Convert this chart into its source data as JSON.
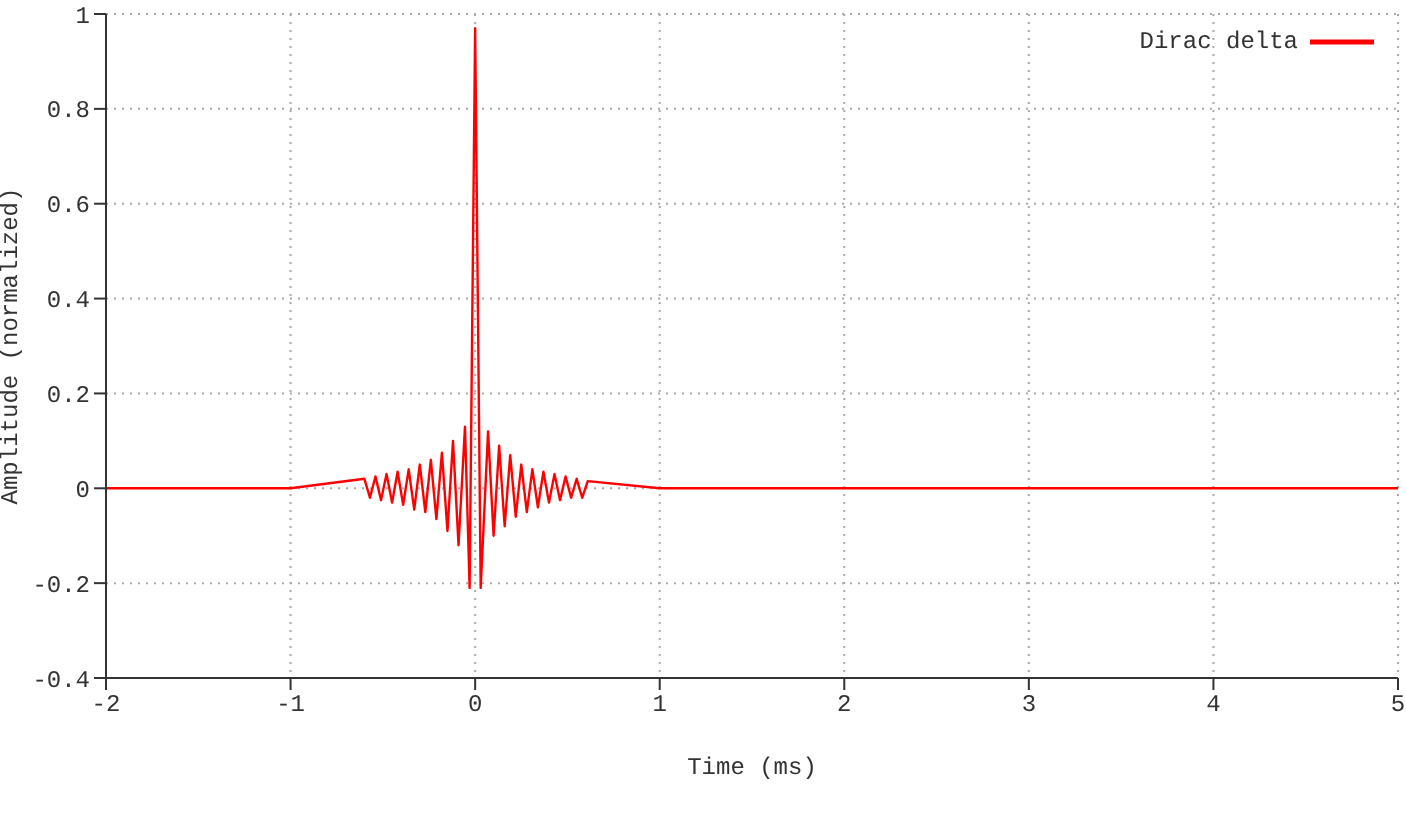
{
  "chart_data": {
    "type": "line",
    "xlabel": "Time (ms)",
    "ylabel": "Amplitude (normalized)",
    "xlim": [
      -2,
      5
    ],
    "xticks": [
      -2,
      -1,
      0,
      1,
      2,
      3,
      4,
      5
    ],
    "ylim": [
      -0.4,
      1
    ],
    "yticks": [
      {
        "value": -0.4,
        "label": "-0.4"
      },
      {
        "value": -0.2,
        "label": "-0.2"
      },
      0,
      0.2,
      0.4,
      0.6,
      0.8,
      1
    ],
    "grid": true,
    "legend": "top right",
    "marker": "none",
    "line_style": "solid",
    "series": [
      {
        "name": "Dirac delta",
        "color": "#ff0000",
        "x": [
          -2,
          -1,
          -0.6,
          -0.57,
          -0.54,
          -0.51,
          -0.48,
          -0.45,
          -0.42,
          -0.39,
          -0.36,
          -0.33,
          -0.3,
          -0.27,
          -0.24,
          -0.21,
          -0.18,
          -0.15,
          -0.12,
          -0.09,
          -0.055,
          -0.03,
          0,
          0.03,
          0.07,
          0.1,
          0.13,
          0.16,
          0.19,
          0.22,
          0.25,
          0.28,
          0.31,
          0.34,
          0.37,
          0.4,
          0.43,
          0.46,
          0.49,
          0.52,
          0.55,
          0.58,
          0.61,
          1,
          2,
          5
        ],
        "values": [
          0,
          0,
          0.02,
          -0.02,
          0.025,
          -0.025,
          0.03,
          -0.03,
          0.035,
          -0.035,
          0.04,
          -0.045,
          0.05,
          -0.05,
          0.06,
          -0.065,
          0.075,
          -0.09,
          0.1,
          -0.12,
          0.13,
          -0.21,
          0.97,
          -0.21,
          0.12,
          -0.1,
          0.09,
          -0.08,
          0.07,
          -0.06,
          0.05,
          -0.05,
          0.04,
          -0.04,
          0.035,
          -0.03,
          0.03,
          -0.025,
          0.025,
          -0.02,
          0.02,
          -0.02,
          0.015,
          0,
          0,
          0
        ]
      }
    ]
  }
}
